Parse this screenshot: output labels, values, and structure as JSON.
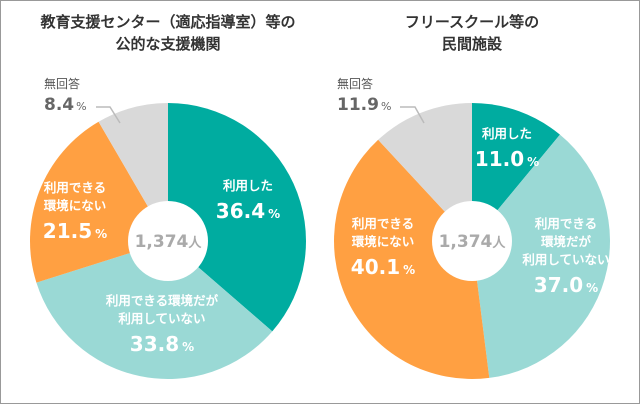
{
  "chart_data": [
    {
      "type": "pie",
      "title": [
        "教育支援センター（適応指導室）等の",
        "公的な支援機関"
      ],
      "center_label": {
        "value": "1,374",
        "unit": "人"
      },
      "slices": [
        {
          "key": "used",
          "label": [
            "利用した"
          ],
          "value": 36.4,
          "display": "36.4",
          "color": "#00aca0"
        },
        {
          "key": "available_not_used",
          "label": [
            "利用できる環境だが",
            "利用していない"
          ],
          "value": 33.8,
          "display": "33.8",
          "color": "#9ad9d5"
        },
        {
          "key": "not_available",
          "label": [
            "利用できる",
            "環境にない"
          ],
          "value": 21.5,
          "display": "21.5",
          "color": "#ffa042"
        },
        {
          "key": "no_answer",
          "label": [
            "無回答"
          ],
          "value": 8.4,
          "display": "8.4",
          "color": "#d9d9d9"
        }
      ]
    },
    {
      "type": "pie",
      "title": [
        "フリースクール等の",
        "民間施設"
      ],
      "center_label": {
        "value": "1,374",
        "unit": "人"
      },
      "slices": [
        {
          "key": "used",
          "label": [
            "利用した"
          ],
          "value": 11.0,
          "display": "11.0",
          "color": "#00aca0"
        },
        {
          "key": "available_not_used",
          "label": [
            "利用できる",
            "環境だが",
            "利用していない"
          ],
          "value": 37.0,
          "display": "37.0",
          "color": "#9ad9d5"
        },
        {
          "key": "not_available",
          "label": [
            "利用できる",
            "環境にない"
          ],
          "value": 40.1,
          "display": "40.1",
          "color": "#ffa042"
        },
        {
          "key": "no_answer",
          "label": [
            "無回答"
          ],
          "value": 11.9,
          "display": "11.9",
          "color": "#d9d9d9"
        }
      ]
    }
  ],
  "percent_sign": "%"
}
